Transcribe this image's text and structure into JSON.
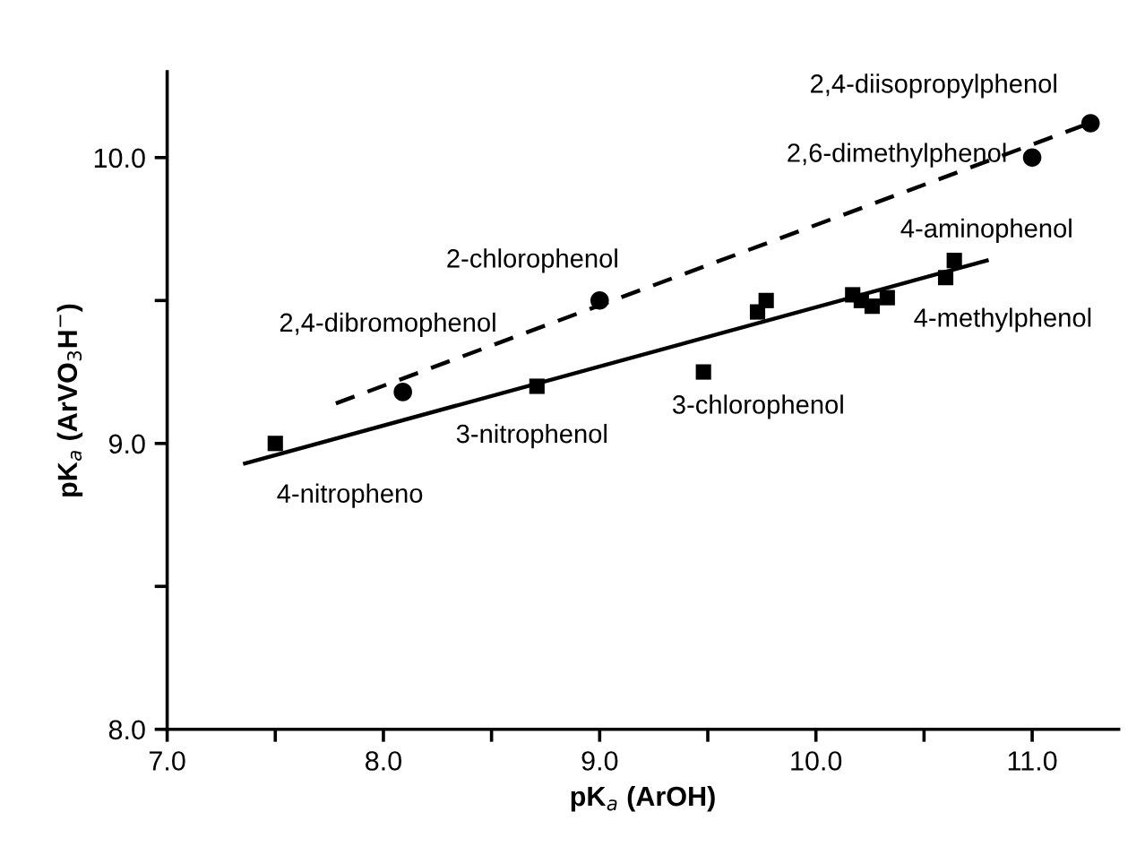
{
  "chart_data": {
    "type": "scatter",
    "xlabel": "pK$_{a}$ (ArOH)",
    "ylabel": "pK$_{a}$ (ArVO$_{3}$H$^{−}$)",
    "xlim": [
      7.0,
      11.4
    ],
    "ylim": [
      8.0,
      10.3
    ],
    "xticks": [
      {
        "value": 7.0,
        "label": "7.0"
      },
      {
        "value": 7.5,
        "label": null
      },
      {
        "value": 8.0,
        "label": "8.0"
      },
      {
        "value": 8.5,
        "label": null
      },
      {
        "value": 9.0,
        "label": "9.0"
      },
      {
        "value": 9.5,
        "label": null
      },
      {
        "value": 10.0,
        "label": "10.0"
      },
      {
        "value": 10.5,
        "label": null
      },
      {
        "value": 11.0,
        "label": "11.0"
      }
    ],
    "yticks": [
      {
        "value": 8.0,
        "label": "8.0"
      },
      {
        "value": 8.5,
        "label": null
      },
      {
        "value": 9.0,
        "label": "9.0"
      },
      {
        "value": 9.5,
        "label": null
      },
      {
        "value": 10.0,
        "label": "10.0"
      }
    ],
    "grid": false,
    "legend": false,
    "series": [
      {
        "type": "line",
        "color": "#000000",
        "line_style": "dashed",
        "marker": "none",
        "x": [
          7.78,
          11.3
        ],
        "values": [
          9.14,
          10.13
        ]
      },
      {
        "type": "line",
        "color": "#000000",
        "line_style": "solid",
        "marker": "none",
        "x": [
          7.36,
          10.79
        ],
        "values": [
          8.93,
          9.64
        ]
      },
      {
        "color": "#000000",
        "marker": "circle",
        "x": [
          8.09,
          9.0,
          11.0,
          11.27
        ],
        "values": [
          9.18,
          9.5,
          10.0,
          10.12
        ]
      },
      {
        "color": "#000000",
        "marker": "square",
        "x": [
          7.5,
          8.71,
          9.48,
          9.73,
          9.77,
          10.17,
          10.21,
          10.26,
          10.33,
          10.6,
          10.64
        ],
        "values": [
          9.0,
          9.2,
          9.25,
          9.46,
          9.5,
          9.52,
          9.5,
          9.48,
          9.51,
          9.58,
          9.64
        ]
      }
    ],
    "annotations": [
      {
        "text": "4-nitropheno",
        "x": 7.5,
        "y": 9.0
      },
      {
        "text": "2,4-dibromophenol",
        "x": 8.09,
        "y": 9.18
      },
      {
        "text": "3-nitrophenol",
        "x": 8.71,
        "y": 9.2
      },
      {
        "text": "2-chlorophenol",
        "x": 9.0,
        "y": 9.5
      },
      {
        "text": "3-chlorophenol",
        "x": 9.48,
        "y": 9.25
      },
      {
        "text": "4-aminophenol",
        "x": 10.64,
        "y": 9.64
      },
      {
        "text": "4-methylphenol",
        "x": 10.6,
        "y": 9.58
      },
      {
        "text": "2,6-dimethylphenol",
        "x": 11.0,
        "y": 10.0
      },
      {
        "text": "2,4-diisopropylphenol",
        "x": 11.27,
        "y": 10.12
      }
    ]
  }
}
